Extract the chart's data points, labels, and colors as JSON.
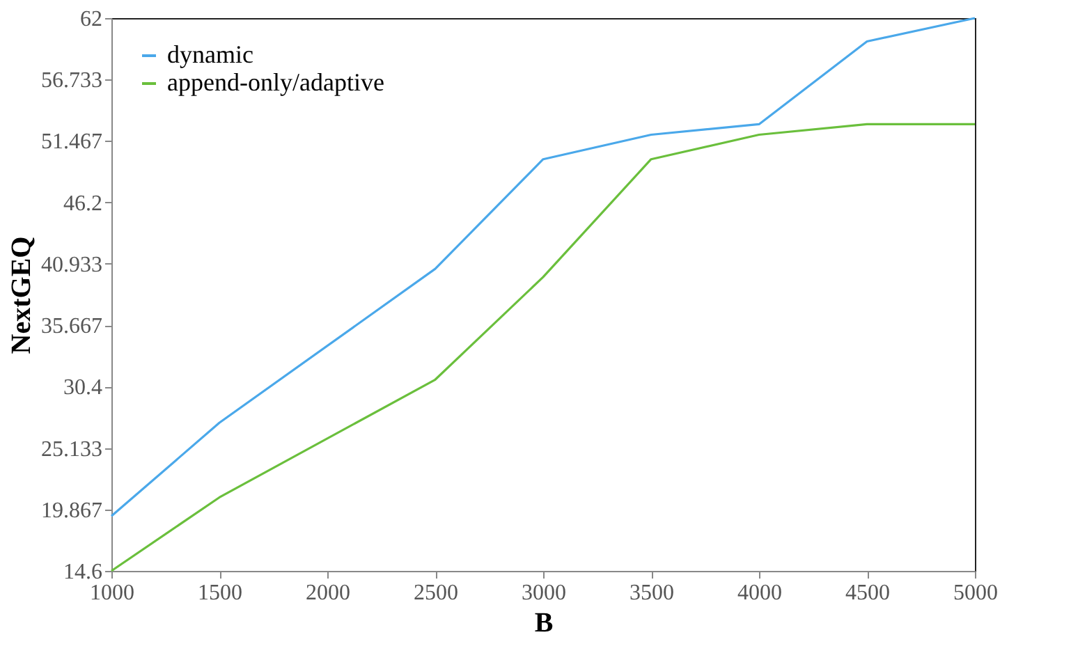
{
  "chart_data": {
    "type": "line",
    "xlabel": "B",
    "ylabel": "NextGEQ",
    "x": [
      1000,
      1500,
      2500,
      3000,
      3500,
      4000,
      4500,
      5000
    ],
    "series": [
      {
        "name": "dynamic",
        "color": "#4aa8ea",
        "values": [
          19.3,
          27.3,
          40.5,
          49.9,
          52.0,
          52.9,
          60.0,
          62.0
        ]
      },
      {
        "name": "append-only/adaptive",
        "color": "#6abf3c",
        "values": [
          14.6,
          20.9,
          31.0,
          39.8,
          49.9,
          52.0,
          52.9,
          52.9
        ]
      }
    ],
    "xlim": [
      1000,
      5000
    ],
    "xticks": [
      1000,
      1500,
      2000,
      2500,
      3000,
      3500,
      4000,
      4500,
      5000
    ],
    "ylim": [
      14.6,
      62
    ],
    "yticks": [
      14.6,
      19.867,
      25.133,
      30.4,
      35.667,
      40.933,
      46.2,
      51.467,
      56.733,
      62
    ],
    "grid": false,
    "legend": "top left",
    "marker": "none",
    "line_style": "solid"
  }
}
